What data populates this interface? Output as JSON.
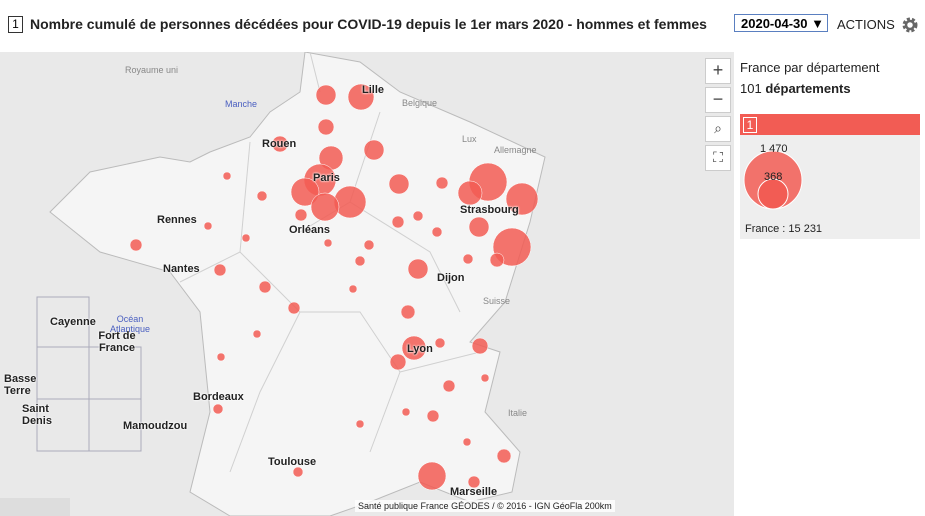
{
  "header": {
    "index": "1",
    "title": "Nombre cumulé de personnes décédées pour COVID-19 depuis le 1er mars 2020 - hommes et femmes",
    "date": "2020-04-30",
    "actions": "ACTIONS"
  },
  "map": {
    "cities": [
      "Lille",
      "Rouen",
      "Paris",
      "Rennes",
      "Orléans",
      "Strasbourg",
      "Nantes",
      "Dijon",
      "Lyon",
      "Bordeaux",
      "Toulouse",
      "Marseille",
      "Cayenne",
      "Fort de France",
      "Basse Terre",
      "Saint Denis",
      "Mamoudzou"
    ],
    "countries": [
      "Royaume uni",
      "Belgique",
      "Lux",
      "Allemagne",
      "Suisse",
      "Italie"
    ],
    "seas": [
      "Manche",
      "Océan Atlantique"
    ],
    "attribution": "Santé publique France GÉODES / © 2016 - IGN GéoFla",
    "scale": "200km"
  },
  "legend": {
    "title": "France par département",
    "count": "101",
    "count_label": "départements",
    "class_index": "1",
    "max_label": "1 470",
    "min_label": "368",
    "total": "France : 15 231"
  }
}
